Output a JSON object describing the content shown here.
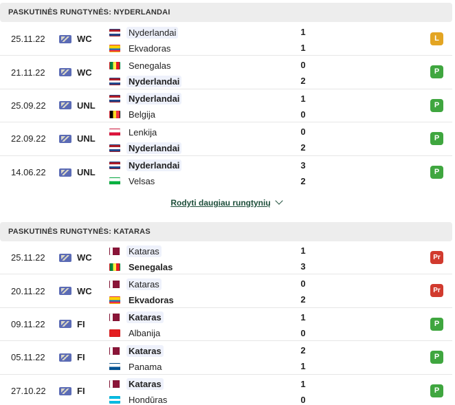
{
  "sections": [
    {
      "title": "PASKUTINĖS RUNGTYNĖS: NYDERLANDAI",
      "matches": [
        {
          "date": "25.11.22",
          "competition": "WC",
          "home": {
            "name": "Nyderlandai",
            "flag": "nl",
            "bold": false,
            "focus": true
          },
          "away": {
            "name": "Ekvadoras",
            "flag": "ec",
            "bold": false,
            "focus": false
          },
          "home_score": "1",
          "away_score": "1",
          "result": "L"
        },
        {
          "date": "21.11.22",
          "competition": "WC",
          "home": {
            "name": "Senegalas",
            "flag": "sn",
            "bold": false,
            "focus": false
          },
          "away": {
            "name": "Nyderlandai",
            "flag": "nl",
            "bold": true,
            "focus": true
          },
          "home_score": "0",
          "away_score": "2",
          "result": "P"
        },
        {
          "date": "25.09.22",
          "competition": "UNL",
          "home": {
            "name": "Nyderlandai",
            "flag": "nl",
            "bold": true,
            "focus": true
          },
          "away": {
            "name": "Belgija",
            "flag": "be",
            "bold": false,
            "focus": false
          },
          "home_score": "1",
          "away_score": "0",
          "result": "P"
        },
        {
          "date": "22.09.22",
          "competition": "UNL",
          "home": {
            "name": "Lenkija",
            "flag": "pl",
            "bold": false,
            "focus": false
          },
          "away": {
            "name": "Nyderlandai",
            "flag": "nl",
            "bold": true,
            "focus": true
          },
          "home_score": "0",
          "away_score": "2",
          "result": "P"
        },
        {
          "date": "14.06.22",
          "competition": "UNL",
          "home": {
            "name": "Nyderlandai",
            "flag": "nl",
            "bold": true,
            "focus": true
          },
          "away": {
            "name": "Velsas",
            "flag": "wal",
            "bold": false,
            "focus": false
          },
          "home_score": "3",
          "away_score": "2",
          "result": "P"
        }
      ],
      "more_label": "Rodyti daugiau rungtynių"
    },
    {
      "title": "PASKUTINĖS RUNGTYNĖS: KATARAS",
      "matches": [
        {
          "date": "25.11.22",
          "competition": "WC",
          "home": {
            "name": "Kataras",
            "flag": "qa",
            "bold": false,
            "focus": true
          },
          "away": {
            "name": "Senegalas",
            "flag": "sn",
            "bold": true,
            "focus": false
          },
          "home_score": "1",
          "away_score": "3",
          "result": "Pr"
        },
        {
          "date": "20.11.22",
          "competition": "WC",
          "home": {
            "name": "Kataras",
            "flag": "qa",
            "bold": false,
            "focus": true
          },
          "away": {
            "name": "Ekvadoras",
            "flag": "ec",
            "bold": true,
            "focus": false
          },
          "home_score": "0",
          "away_score": "2",
          "result": "Pr"
        },
        {
          "date": "09.11.22",
          "competition": "FI",
          "home": {
            "name": "Kataras",
            "flag": "qa",
            "bold": true,
            "focus": true
          },
          "away": {
            "name": "Albanija",
            "flag": "al",
            "bold": false,
            "focus": false
          },
          "home_score": "1",
          "away_score": "0",
          "result": "P"
        },
        {
          "date": "05.11.22",
          "competition": "FI",
          "home": {
            "name": "Kataras",
            "flag": "qa",
            "bold": true,
            "focus": true
          },
          "away": {
            "name": "Panama",
            "flag": "pa",
            "bold": false,
            "focus": false
          },
          "home_score": "2",
          "away_score": "1",
          "result": "P"
        },
        {
          "date": "27.10.22",
          "competition": "FI",
          "home": {
            "name": "Kataras",
            "flag": "qa",
            "bold": true,
            "focus": true
          },
          "away": {
            "name": "Hondūras",
            "flag": "hn",
            "bold": false,
            "focus": false
          },
          "home_score": "1",
          "away_score": "0",
          "result": "P"
        }
      ]
    }
  ],
  "colors": {
    "win": "#3fa63f",
    "draw": "#e3a523",
    "loss": "#d13a2e",
    "header_bg": "#ededed",
    "focus_bg": "#eef1fb",
    "link": "#1d4e3a"
  }
}
